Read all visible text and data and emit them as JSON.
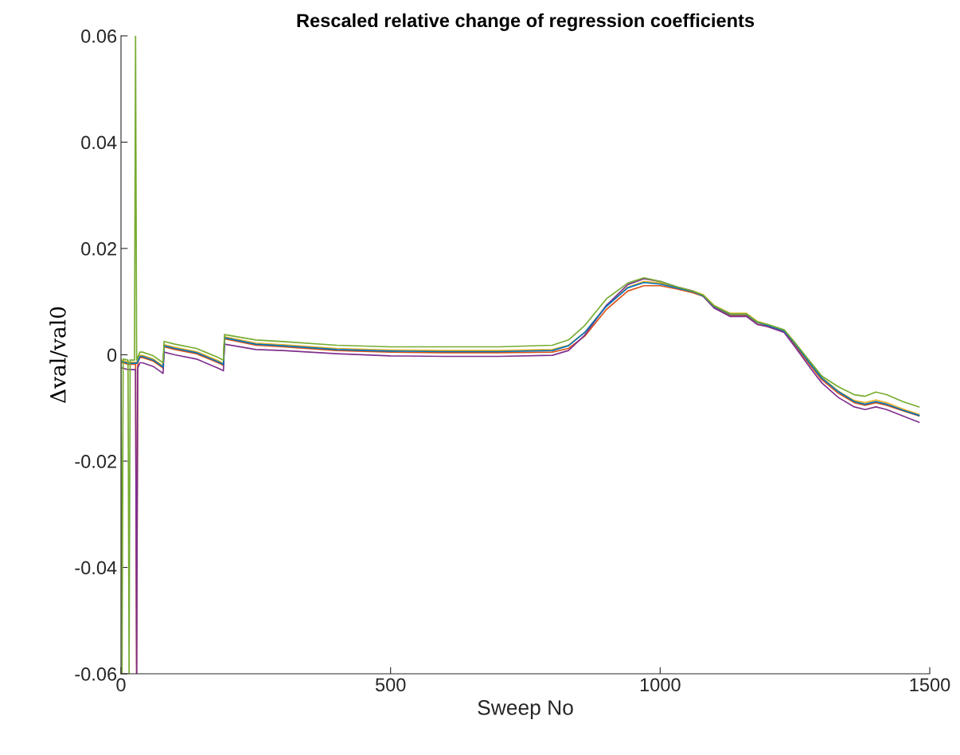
{
  "chart_data": {
    "type": "line",
    "title": "Rescaled relative change of regression coefficients",
    "xlabel": "Sweep No",
    "ylabel": "Δval/val0",
    "x": [
      0,
      2,
      4,
      13,
      15,
      17,
      25,
      27,
      29,
      31,
      35,
      40,
      60,
      78,
      80,
      100,
      140,
      180,
      190,
      192,
      250,
      300,
      400,
      500,
      600,
      700,
      800,
      830,
      860,
      900,
      940,
      970,
      1000,
      1030,
      1060,
      1080,
      1100,
      1130,
      1160,
      1180,
      1200,
      1230,
      1250,
      1280,
      1300,
      1330,
      1360,
      1380,
      1400,
      1420,
      1450,
      1480
    ],
    "xlim": [
      0,
      1500
    ],
    "xticks": [
      0,
      500,
      1000,
      1500
    ],
    "ylim": [
      -0.06,
      0.06
    ],
    "yticks": [
      -0.06,
      -0.04,
      -0.02,
      0,
      0.02,
      0.04,
      0.06
    ],
    "grid": false,
    "legend": false,
    "line_style": "solid",
    "marker": "none",
    "series": [
      {
        "color": "#d95319",
        "values": [
          -0.0015,
          -0.0015,
          -0.0015,
          -0.0018,
          -0.0018,
          -0.0018,
          -0.0018,
          -0.0018,
          -0.06,
          -0.0015,
          -0.0005,
          -0.0005,
          -0.0012,
          -0.0025,
          0.0015,
          0.001,
          0.0002,
          -0.0015,
          -0.002,
          0.003,
          0.0018,
          0.0015,
          0.0008,
          0.0005,
          0.0004,
          0.0004,
          0.0005,
          0.0012,
          0.0035,
          0.0085,
          0.012,
          0.013,
          0.013,
          0.0124,
          0.0117,
          0.011,
          0.009,
          0.0074,
          0.0074,
          0.0058,
          0.0053,
          0.0043,
          0.0018,
          -0.0022,
          -0.0047,
          -0.0072,
          -0.009,
          -0.0095,
          -0.009,
          -0.0095,
          -0.0105,
          -0.0115
        ]
      },
      {
        "color": "#edb120",
        "values": [
          -0.0011,
          -0.0011,
          -0.0011,
          -0.0014,
          -0.0014,
          -0.0014,
          -0.0014,
          -0.0014,
          -0.0014,
          -0.0011,
          -0.0001,
          -0.0001,
          -0.0008,
          -0.0021,
          0.0019,
          0.0014,
          0.0006,
          -0.0011,
          -0.0016,
          0.0034,
          0.0022,
          0.0019,
          0.0012,
          0.0009,
          0.0008,
          0.0008,
          0.001,
          0.0018,
          0.0042,
          0.0092,
          0.0127,
          0.0138,
          0.0135,
          0.0127,
          0.012,
          0.0113,
          0.0093,
          0.0078,
          0.0078,
          0.0063,
          0.0057,
          0.0046,
          0.0022,
          -0.0018,
          -0.0043,
          -0.0068,
          -0.0086,
          -0.009,
          -0.0085,
          -0.009,
          -0.0102,
          -0.0112
        ]
      },
      {
        "color": "#7e2f8e",
        "values": [
          -0.0025,
          -0.0025,
          -0.0025,
          -0.0028,
          -0.0028,
          -0.0028,
          -0.0028,
          -0.0028,
          -0.06,
          -0.0025,
          -0.0015,
          -0.0015,
          -0.0022,
          -0.0035,
          0.0005,
          0.0,
          -0.0008,
          -0.0025,
          -0.003,
          0.002,
          0.001,
          0.0008,
          0.0002,
          -0.0002,
          -0.0003,
          -0.0003,
          -0.0001,
          0.0008,
          0.0037,
          0.0093,
          0.0132,
          0.0143,
          0.0138,
          0.0128,
          0.012,
          0.011,
          0.0088,
          0.0072,
          0.0072,
          0.0057,
          0.0053,
          0.0042,
          0.0015,
          -0.0027,
          -0.0053,
          -0.008,
          -0.0098,
          -0.0103,
          -0.0098,
          -0.0103,
          -0.0115,
          -0.0127
        ]
      },
      {
        "color": "#0072bd",
        "values": [
          -0.0013,
          -0.0013,
          -0.0013,
          -0.0016,
          -0.0016,
          -0.0016,
          -0.0016,
          -0.0016,
          -0.0016,
          -0.0013,
          -0.0003,
          -0.0003,
          -0.001,
          -0.0023,
          0.0017,
          0.0012,
          0.0004,
          -0.0013,
          -0.0018,
          0.0032,
          0.002,
          0.0017,
          0.001,
          0.0007,
          0.0006,
          0.0006,
          0.0008,
          0.0017,
          0.0042,
          0.0091,
          0.0126,
          0.0136,
          0.0133,
          0.0126,
          0.0119,
          0.0111,
          0.0091,
          0.0076,
          0.0076,
          0.0061,
          0.0055,
          0.0045,
          0.0021,
          -0.0019,
          -0.0044,
          -0.0069,
          -0.0088,
          -0.0093,
          -0.0088,
          -0.0093,
          -0.0104,
          -0.0114
        ]
      },
      {
        "color": "#77ac30",
        "values": [
          -0.0008,
          -0.06,
          -0.0008,
          -0.001,
          -0.06,
          -0.001,
          -0.001,
          0.06,
          -0.001,
          -0.0005,
          0.0005,
          0.0005,
          -0.0002,
          -0.0015,
          0.0025,
          0.002,
          0.0012,
          -0.0005,
          -0.001,
          0.0038,
          0.0028,
          0.0025,
          0.0018,
          0.0015,
          0.0015,
          0.0015,
          0.0018,
          0.0028,
          0.0055,
          0.0105,
          0.0135,
          0.0145,
          0.0138,
          0.0128,
          0.012,
          0.0112,
          0.0092,
          0.0077,
          0.0077,
          0.0062,
          0.0057,
          0.0047,
          0.0023,
          -0.0015,
          -0.004,
          -0.006,
          -0.0075,
          -0.0078,
          -0.007,
          -0.0075,
          -0.0088,
          -0.0098
        ]
      }
    ]
  }
}
